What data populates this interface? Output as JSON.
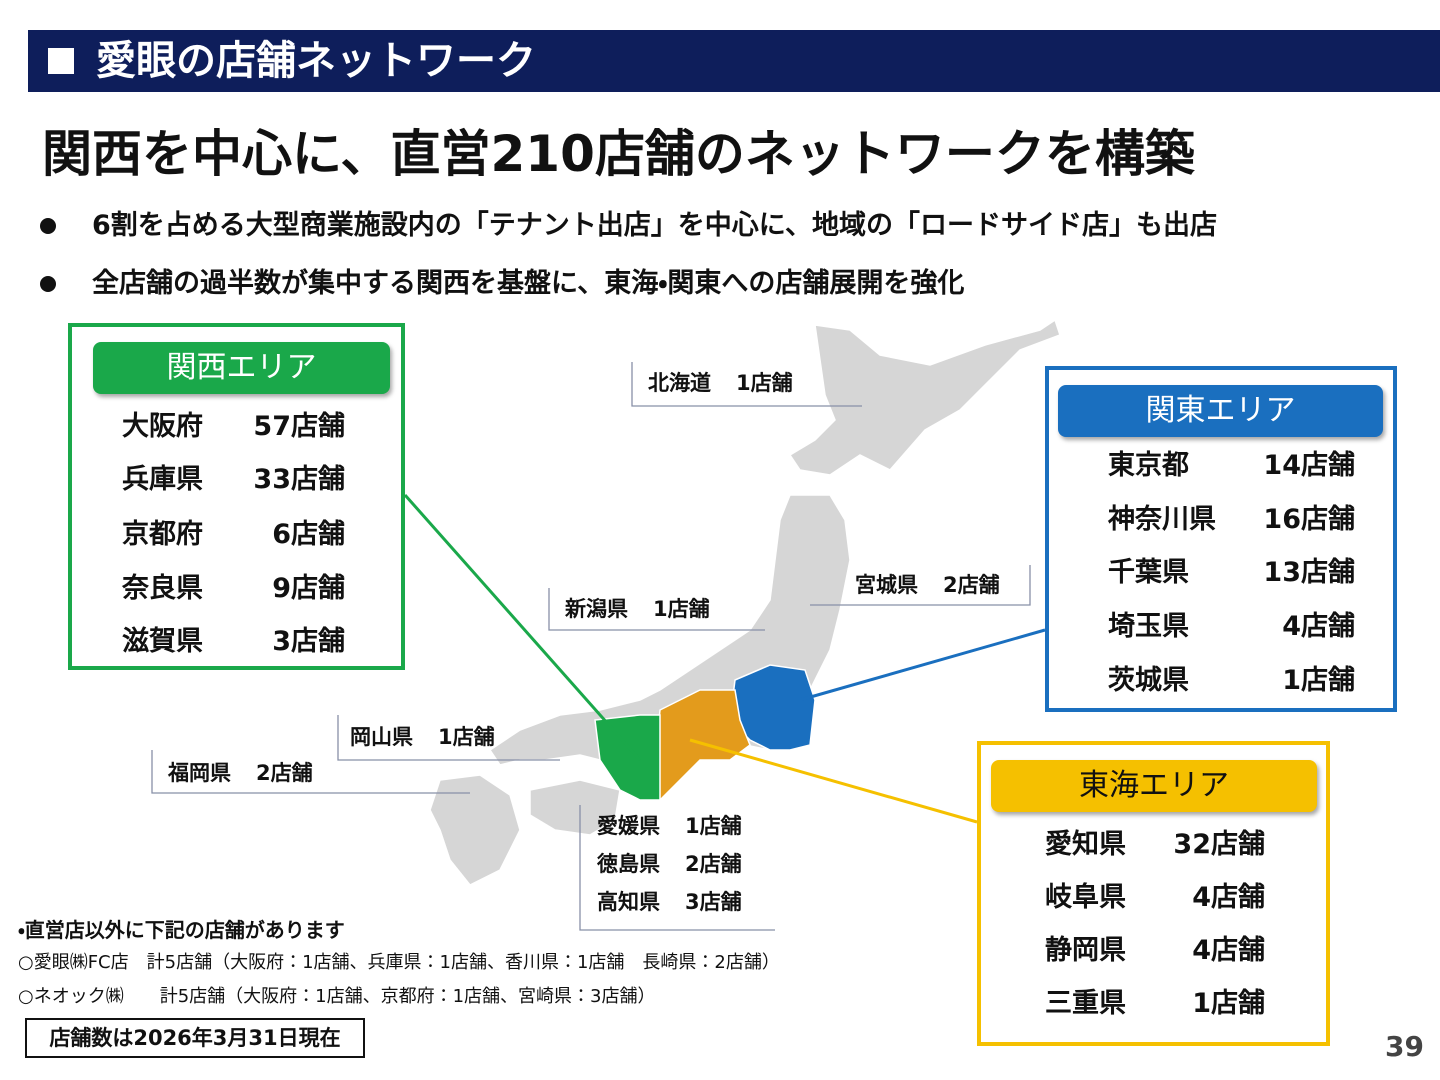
{
  "header": {
    "title": "愛眼の店舗ネットワーク"
  },
  "headline": "関西を中心に、直営210店舗のネットワークを構築",
  "bullets": [
    "6割を占める大型商業施設内の「テナント出店」を中心に、地域の「ロードサイド店」も出店",
    "全店舗の過半数が集中する関西を基盤に、東海・関東への店舗展開を強化"
  ],
  "areas": [
    {
      "name": "関西エリア",
      "rows": [
        [
          "大阪府",
          "57店舗"
        ],
        [
          "兵庫県",
          "33店舗"
        ],
        [
          "京都府",
          "6店舗"
        ],
        [
          "奈良県",
          "9店舗"
        ],
        [
          "滋賀県",
          "3店舗"
        ]
      ]
    },
    {
      "name": "関東エリア",
      "rows": [
        [
          "東京都",
          "14店舗"
        ],
        [
          "神奈川県",
          "16店舗"
        ],
        [
          "千葉県",
          "13店舗"
        ],
        [
          "埼玉県",
          "4店舗"
        ],
        [
          "茨城県",
          "1店舗"
        ]
      ]
    },
    {
      "name": "東海エリア",
      "rows": [
        [
          "愛知県",
          "32店舗"
        ],
        [
          "岐阜県",
          "4店舗"
        ],
        [
          "静岡県",
          "4店舗"
        ],
        [
          "三重県",
          "1店舗"
        ]
      ]
    }
  ],
  "callouts": [
    {
      "rows": [
        [
          "北海道",
          "1店舗"
        ]
      ]
    },
    {
      "rows": [
        [
          "新潟県",
          "1店舗"
        ]
      ]
    },
    {
      "rows": [
        [
          "宮城県",
          "2店舗"
        ]
      ]
    },
    {
      "rows": [
        [
          "岡山県",
          "1店舗"
        ]
      ]
    },
    {
      "rows": [
        [
          "福岡県",
          "2店舗"
        ]
      ]
    },
    {
      "rows": [
        [
          "愛媛県",
          "1店舗"
        ],
        [
          "徳島県",
          "2店舗"
        ],
        [
          "高知県",
          "3店舗"
        ]
      ]
    }
  ],
  "notes": {
    "heading": "・直営店以外に下記の店舗があります",
    "lines": [
      "○愛眼㈱FC店　計5店舗（大阪府：1店舗、兵庫県：1店舗、香川県：1店舗　長崎県：2店舗）",
      "○ネオック㈱　　計5店舗（大阪府：1店舗、京都府：1店舗、宮崎県：3店舗）"
    ]
  },
  "as_of": "店舗数は2026年3月31日現在",
  "page_number": "39"
}
